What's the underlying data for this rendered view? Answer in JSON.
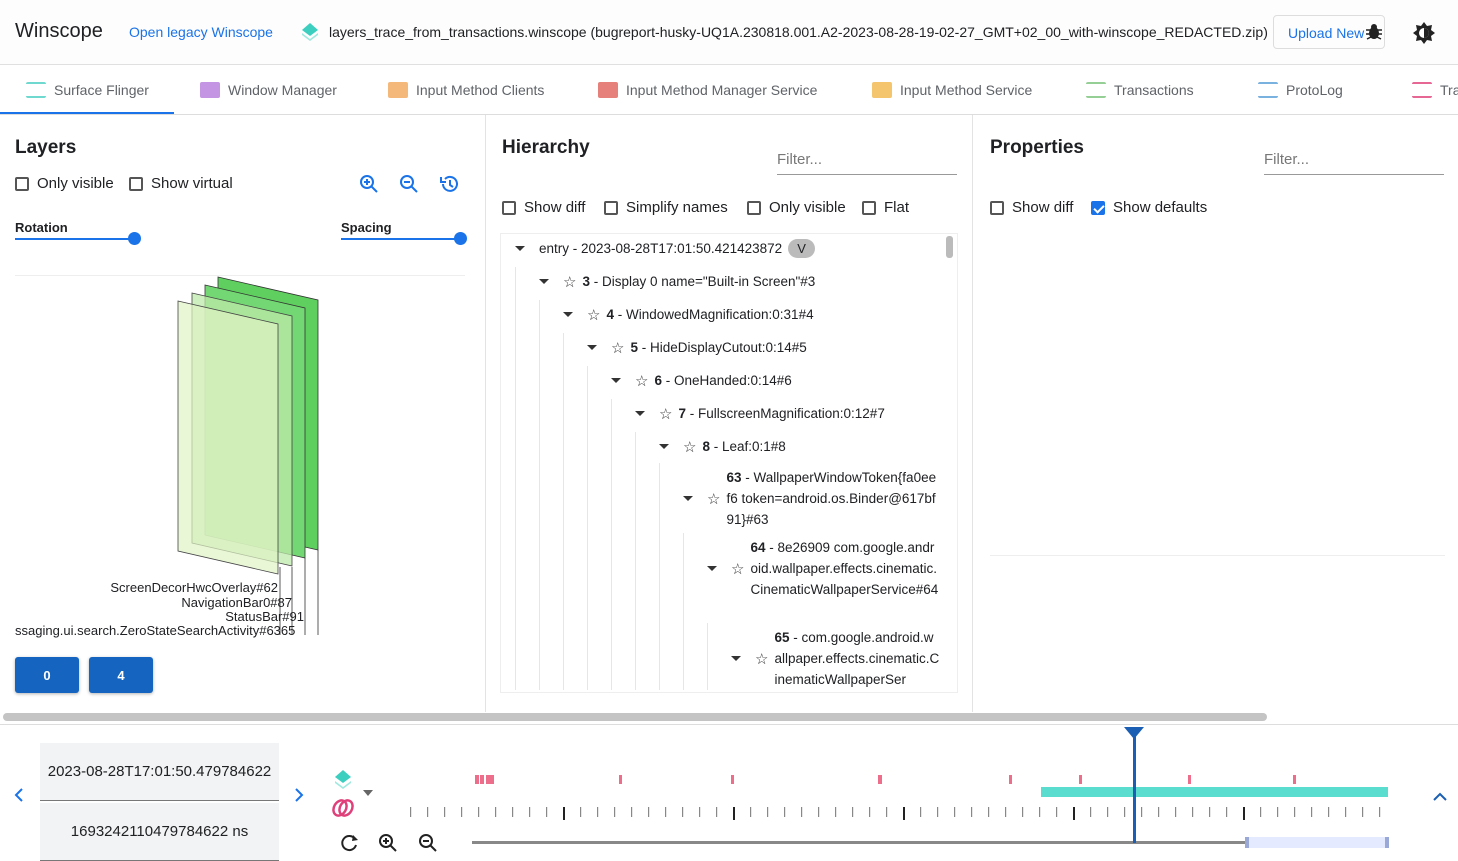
{
  "header": {
    "title": "Winscope",
    "legacy_link": "Open legacy Winscope",
    "trace_file": "layers_trace_from_transactions.winscope (bugreport-husky-UQ1A.230818.001.A2-2023-08-28-19-02-27_GMT+02_00_with-winscope_REDACTED.zip)",
    "upload_label": "Upload New",
    "icons": [
      "layers-icon",
      "bug-icon",
      "theme-toggle-icon"
    ]
  },
  "tabs": [
    {
      "label": "Surface Flinger",
      "icon": "layers-icon",
      "color": "#4dd0c4",
      "active": true
    },
    {
      "label": "Window Manager",
      "icon": "window-icon",
      "color": "#b57bdc"
    },
    {
      "label": "Input Method Clients",
      "icon": "keyboard-icon",
      "color": "#f2a65a"
    },
    {
      "label": "Input Method Manager Service",
      "icon": "keyboard-icon",
      "color": "#e0605a"
    },
    {
      "label": "Input Method Service",
      "icon": "keyboard-icon",
      "color": "#f2b64a"
    },
    {
      "label": "Transactions",
      "icon": "chart-line-icon",
      "color": "#7cc47c"
    },
    {
      "label": "ProtoLog",
      "icon": "list-icon",
      "color": "#5aa0d8"
    },
    {
      "label": "Tra",
      "icon": "rings-icon",
      "color": "#e0407a"
    }
  ],
  "layers": {
    "title": "Layers",
    "only_visible": "Only visible",
    "show_virtual": "Show virtual",
    "rotation": "Rotation",
    "spacing": "Spacing",
    "rotation_value": 1.0,
    "spacing_value": 1.0,
    "labels": [
      "ScreenDecorHwcOverlay#62",
      "NavigationBar0#87",
      "StatusBar#91",
      "ssaging.ui.search.ZeroStateSearchActivity#6365"
    ],
    "display_buttons": [
      "0",
      "4"
    ]
  },
  "hierarchy": {
    "title": "Hierarchy",
    "filter_placeholder": "Filter...",
    "show_diff": "Show diff",
    "simplify_names": "Simplify names",
    "only_visible": "Only visible",
    "flat": "Flat",
    "nodes": [
      {
        "id": "entry",
        "name": " - 2023-08-28T17:01:50.421423872",
        "badge": "V",
        "depth": 0
      },
      {
        "id": "3",
        "name": " - Display 0 name=\"Built-in Screen\"#3",
        "depth": 1
      },
      {
        "id": "4",
        "name": " - WindowedMagnification:0:31#4",
        "depth": 2
      },
      {
        "id": "5",
        "name": " - HideDisplayCutout:0:14#5",
        "depth": 3
      },
      {
        "id": "6",
        "name": " - OneHanded:0:14#6",
        "depth": 4
      },
      {
        "id": "7",
        "name": " - FullscreenMagnification:0:12#7",
        "depth": 5
      },
      {
        "id": "8",
        "name": " - Leaf:0:1#8",
        "depth": 6
      },
      {
        "id": "63",
        "name": " - WallpaperWindowToken{fa0eef6 token=android.os.Binder@617bf91}#63",
        "depth": 7
      },
      {
        "id": "64",
        "name": " - 8e26909 com.google.android.wallpaper.effects.cinematic.CinematicWallpaperService#64",
        "depth": 8
      },
      {
        "id": "65",
        "name": " - com.google.android.wallpaper.effects.cinematic.CinematicWallpaperSer",
        "depth": 9
      }
    ]
  },
  "properties": {
    "title": "Properties",
    "filter_placeholder": "Filter...",
    "show_diff": "Show diff",
    "show_defaults": "Show defaults",
    "show_defaults_checked": true
  },
  "timeline": {
    "timestamp": "2023-08-28T17:01:50.479784622",
    "timestamp_ns": "1693242110479784622 ns",
    "colors": {
      "cursor": "#1a5fb4",
      "transactions": "#e84a6e",
      "layers": "#3dd6c6"
    }
  }
}
